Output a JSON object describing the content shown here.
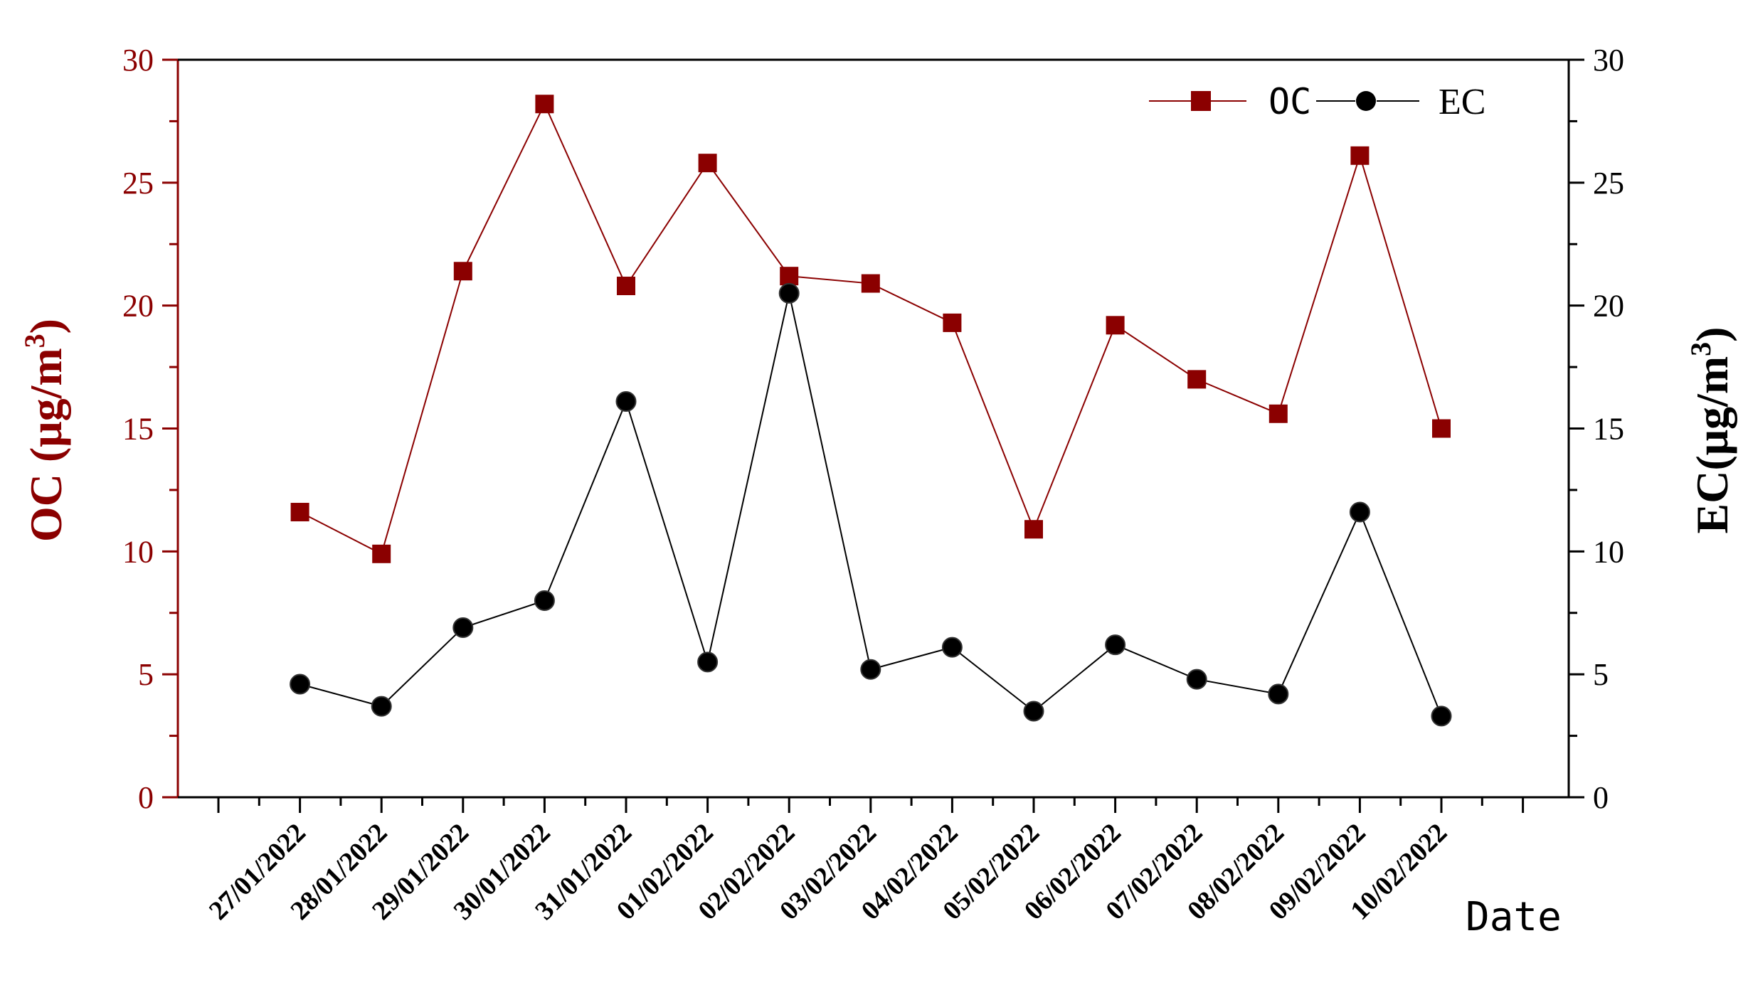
{
  "chart_data": {
    "type": "line",
    "categories": [
      "27/01/2022",
      "28/01/2022",
      "29/01/2022",
      "30/01/2022",
      "31/01/2022",
      "01/02/2022",
      "02/02/2022",
      "03/02/2022",
      "04/02/2022",
      "05/02/2022",
      "06/02/2022",
      "07/02/2022",
      "08/02/2022",
      "09/02/2022",
      "10/02/2022"
    ],
    "series": [
      {
        "name": "OC",
        "axis": "left",
        "marker": "square",
        "color": "#8b0000",
        "values": [
          11.6,
          9.9,
          21.4,
          28.2,
          20.8,
          25.8,
          21.2,
          20.9,
          19.3,
          10.9,
          19.2,
          17.0,
          15.6,
          26.1,
          15.0
        ]
      },
      {
        "name": "EC",
        "axis": "right",
        "marker": "circle",
        "color": "#000000",
        "values": [
          4.6,
          3.7,
          6.9,
          8.0,
          16.1,
          5.5,
          20.5,
          5.2,
          6.1,
          3.5,
          6.2,
          4.8,
          4.2,
          11.6,
          3.3
        ]
      }
    ],
    "xlabel": "Date",
    "ylabel_left": {
      "prefix": "OC (μg/m",
      "sup": "3",
      "suffix": ")"
    },
    "ylabel_right": {
      "prefix": "EC(μg/m",
      "sup": "3",
      "suffix": ")"
    },
    "ylim_left": [
      0,
      30
    ],
    "ylim_right": [
      0,
      30
    ],
    "yticks": [
      0,
      5,
      10,
      15,
      20,
      25,
      30
    ],
    "grid": false,
    "legend_position": "top-right",
    "left_axis_color": "#8b0000",
    "right_axis_color": "#000000"
  }
}
